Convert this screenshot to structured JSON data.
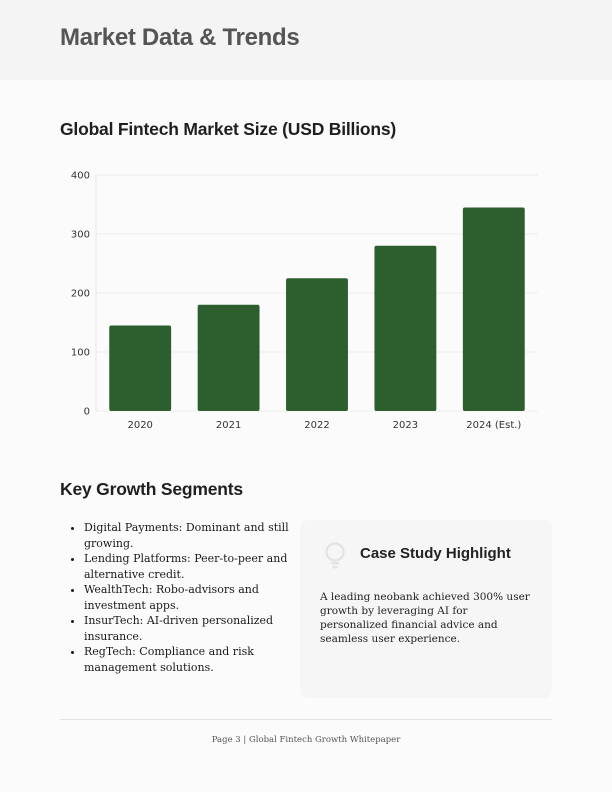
{
  "header": {
    "title": "Market Data & Trends"
  },
  "chart_section": {
    "title": "Global Fintech Market Size (USD Billions)"
  },
  "chart_data": {
    "type": "bar",
    "title": "Global Fintech Market Size (USD Billions)",
    "categories": [
      "2020",
      "2021",
      "2022",
      "2023",
      "2024 (Est.)"
    ],
    "values": [
      145,
      180,
      225,
      280,
      345
    ],
    "ylim": [
      0,
      400
    ],
    "yticks": [
      0,
      100,
      200,
      300,
      400
    ],
    "xlabel": "",
    "ylabel": "",
    "grid": true,
    "bar_color": "#2d5e2e"
  },
  "segments": {
    "title": "Key Growth Segments",
    "items": [
      "Digital Payments: Dominant and still growing.",
      "Lending Platforms: Peer-to-peer and alternative credit.",
      "WealthTech: Robo-advisors and investment apps.",
      "InsurTech: AI-driven personalized insurance.",
      "RegTech: Compliance and risk management solutions."
    ]
  },
  "case_study": {
    "icon": "lightbulb-icon",
    "title": "Case Study Highlight",
    "text": "A leading neobank achieved 300% user growth by leveraging AI for personalized financial advice and seamless user experience."
  },
  "footer": {
    "text": "Page 3 | Global Fintech Growth Whitepaper"
  }
}
